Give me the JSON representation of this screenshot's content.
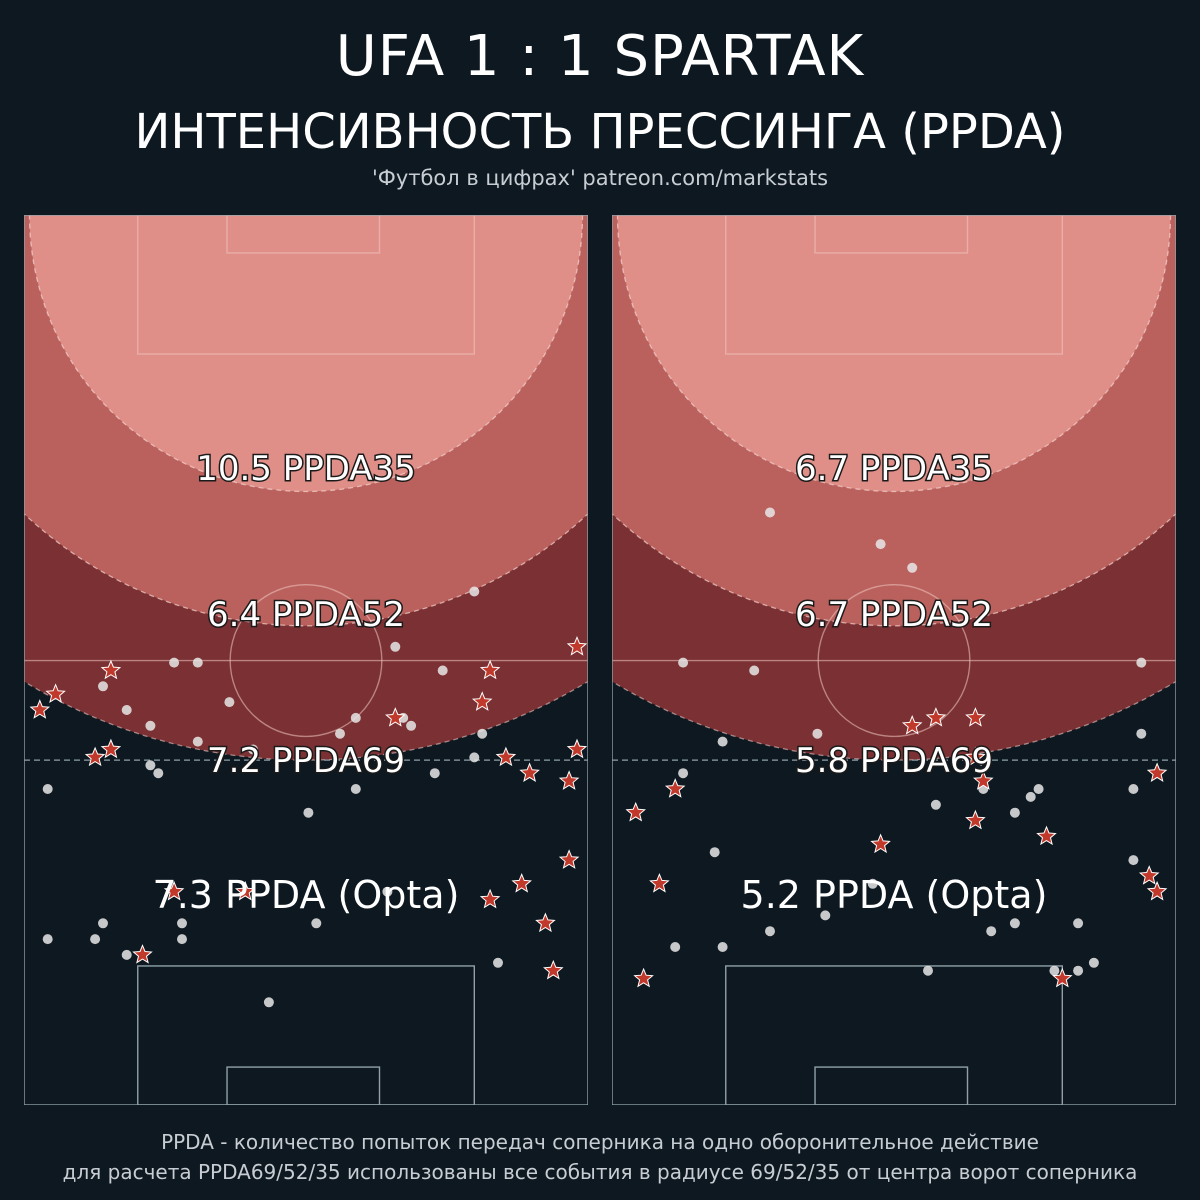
{
  "header": {
    "title": "UFA  1 : 1  SPARTAK",
    "subtitle": "ИНТЕНСИВНОСТЬ ПРЕССИНГА (PPDA)",
    "credit": "'Футбол в цифрах' patreon.com/markstats"
  },
  "footer": {
    "line1": "PPDA - количество попыток передач соперника на одно оборонительное действие",
    "line2": "для расчета PPDA69/52/35 использованы все события в радиусе 69/52/35 от центра ворот соперника"
  },
  "colors": {
    "background": "#0e1820",
    "zone35": "#e08f88",
    "zone52": "#ba615d",
    "zone69": "#7b3033",
    "star": "#c0392b",
    "dot": "#e8e8e8",
    "lines": "#8fa0a8"
  },
  "chart_data": [
    {
      "type": "scatter",
      "team": "UFA",
      "ppda_labels": {
        "ppda35": "10.5 PPDA35",
        "ppda52": "6.4 PPDA52",
        "ppda69": "7.2 PPDA69",
        "opta": "7.3 PPDA (Opta)"
      },
      "ppda": {
        "ppda35": 10.5,
        "ppda52": 6.4,
        "ppda69": 7.2,
        "opta": 7.3
      },
      "dots": [
        [
          57,
          65
        ],
        [
          47,
          58
        ],
        [
          19,
          56
        ],
        [
          22,
          56
        ],
        [
          10,
          53
        ],
        [
          53,
          55
        ],
        [
          13,
          50
        ],
        [
          26,
          51
        ],
        [
          48,
          49
        ],
        [
          42,
          49
        ],
        [
          49,
          48
        ],
        [
          16,
          48
        ],
        [
          40,
          47
        ],
        [
          58,
          47
        ],
        [
          22,
          46
        ],
        [
          29,
          45
        ],
        [
          57,
          44
        ],
        [
          16,
          43
        ],
        [
          17,
          42
        ],
        [
          52,
          42
        ],
        [
          3,
          40
        ],
        [
          42,
          40
        ],
        [
          36,
          37
        ],
        [
          46,
          27
        ],
        [
          10,
          23
        ],
        [
          20,
          23
        ],
        [
          37,
          23
        ],
        [
          3,
          21
        ],
        [
          9,
          21
        ],
        [
          20,
          21
        ],
        [
          13,
          19
        ],
        [
          60,
          18
        ],
        [
          31,
          13
        ]
      ],
      "stars": [
        [
          70,
          58
        ],
        [
          11,
          55
        ],
        [
          59,
          55
        ],
        [
          4,
          52
        ],
        [
          58,
          51
        ],
        [
          2,
          50
        ],
        [
          47,
          49
        ],
        [
          11,
          45
        ],
        [
          70,
          45
        ],
        [
          9,
          44
        ],
        [
          61,
          44
        ],
        [
          64,
          42
        ],
        [
          69,
          41
        ],
        [
          69,
          31
        ],
        [
          63,
          28
        ],
        [
          19,
          27
        ],
        [
          28,
          27
        ],
        [
          59,
          26
        ],
        [
          66,
          23
        ],
        [
          15,
          19
        ],
        [
          67,
          17
        ]
      ]
    },
    {
      "type": "scatter",
      "team": "SPARTAK",
      "ppda_labels": {
        "ppda35": "6.7 PPDA35",
        "ppda52": "6.7 PPDA52",
        "ppda69": "5.8 PPDA69",
        "opta": "5.2 PPDA (Opta)"
      },
      "ppda": {
        "ppda35": 6.7,
        "ppda52": 6.7,
        "ppda69": 5.8,
        "opta": 5.2
      },
      "dots": [
        [
          20,
          75
        ],
        [
          34,
          71
        ],
        [
          38,
          68
        ],
        [
          9,
          56
        ],
        [
          18,
          55
        ],
        [
          67,
          56
        ],
        [
          26,
          47
        ],
        [
          67,
          47
        ],
        [
          14,
          46
        ],
        [
          9,
          42
        ],
        [
          47,
          40
        ],
        [
          54,
          40
        ],
        [
          66,
          40
        ],
        [
          53,
          39
        ],
        [
          41,
          38
        ],
        [
          51,
          37
        ],
        [
          13,
          32
        ],
        [
          66,
          31
        ],
        [
          33,
          28
        ],
        [
          27,
          24
        ],
        [
          51,
          23
        ],
        [
          59,
          23
        ],
        [
          20,
          22
        ],
        [
          8,
          20
        ],
        [
          14,
          20
        ],
        [
          48,
          22
        ],
        [
          40,
          17
        ],
        [
          59,
          17
        ],
        [
          61,
          18
        ],
        [
          56,
          17
        ]
      ],
      "stars": [
        [
          41,
          49
        ],
        [
          46,
          49
        ],
        [
          38,
          48
        ],
        [
          69,
          42
        ],
        [
          47,
          41
        ],
        [
          8,
          40
        ],
        [
          46,
          36
        ],
        [
          3,
          37
        ],
        [
          55,
          34
        ],
        [
          34,
          33
        ],
        [
          68,
          29
        ],
        [
          6,
          28
        ],
        [
          69,
          27
        ],
        [
          4,
          16
        ],
        [
          57,
          16
        ],
        [
          46,
          44
        ]
      ]
    }
  ]
}
